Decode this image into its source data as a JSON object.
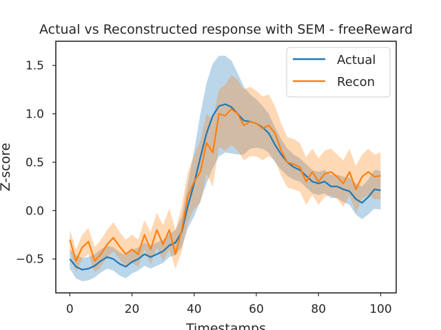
{
  "chart_data": {
    "type": "line",
    "title": "Actual vs Reconstructed response with SEM - freeReward",
    "xlabel": "Timestamps",
    "ylabel": "Z-score",
    "xlim": [
      -4.5,
      105
    ],
    "ylim": [
      -0.85,
      1.75
    ],
    "xticks": [
      0,
      20,
      40,
      60,
      80,
      100
    ],
    "yticks": [
      -0.5,
      0.0,
      0.5,
      1.0,
      1.5
    ],
    "ytick_labels": [
      "−0.5",
      "0.0",
      "0.5",
      "1.0",
      "1.5"
    ],
    "grid": false,
    "legend_position": "top-right",
    "x": [
      0,
      2,
      4,
      6,
      8,
      10,
      12,
      14,
      16,
      18,
      20,
      22,
      24,
      26,
      28,
      30,
      32,
      34,
      36,
      38,
      40,
      42,
      44,
      46,
      48,
      50,
      52,
      54,
      56,
      58,
      60,
      62,
      64,
      66,
      68,
      70,
      72,
      74,
      76,
      78,
      80,
      82,
      84,
      86,
      88,
      90,
      92,
      94,
      96,
      98,
      100
    ],
    "series": [
      {
        "name": "Actual",
        "color": "#1f77b4",
        "values": [
          -0.5,
          -0.58,
          -0.61,
          -0.6,
          -0.57,
          -0.52,
          -0.48,
          -0.5,
          -0.55,
          -0.58,
          -0.53,
          -0.5,
          -0.45,
          -0.48,
          -0.45,
          -0.42,
          -0.36,
          -0.33,
          -0.22,
          0.05,
          0.28,
          0.55,
          0.8,
          0.98,
          1.08,
          1.1,
          1.07,
          1.0,
          0.93,
          0.92,
          0.9,
          0.86,
          0.8,
          0.68,
          0.58,
          0.5,
          0.45,
          0.42,
          0.36,
          0.3,
          0.28,
          0.3,
          0.25,
          0.25,
          0.22,
          0.2,
          0.12,
          0.08,
          0.14,
          0.22,
          0.21
        ],
        "sem_upper": [
          -0.4,
          -0.46,
          -0.49,
          -0.48,
          -0.45,
          -0.4,
          -0.36,
          -0.38,
          -0.43,
          -0.46,
          -0.41,
          -0.38,
          -0.33,
          -0.36,
          -0.33,
          -0.3,
          -0.24,
          -0.2,
          -0.06,
          0.28,
          0.62,
          1.0,
          1.32,
          1.52,
          1.6,
          1.6,
          1.55,
          1.42,
          1.28,
          1.2,
          1.15,
          1.08,
          1.0,
          0.86,
          0.74,
          0.64,
          0.58,
          0.54,
          0.48,
          0.42,
          0.4,
          0.42,
          0.37,
          0.37,
          0.35,
          0.34,
          0.28,
          0.25,
          0.32,
          0.42,
          0.41
        ],
        "sem_lower": [
          -0.6,
          -0.7,
          -0.73,
          -0.72,
          -0.69,
          -0.64,
          -0.6,
          -0.62,
          -0.67,
          -0.7,
          -0.65,
          -0.62,
          -0.57,
          -0.6,
          -0.57,
          -0.54,
          -0.48,
          -0.46,
          -0.38,
          -0.18,
          -0.06,
          0.1,
          0.28,
          0.44,
          0.56,
          0.6,
          0.59,
          0.58,
          0.58,
          0.64,
          0.65,
          0.64,
          0.6,
          0.5,
          0.42,
          0.36,
          0.32,
          0.3,
          0.24,
          0.18,
          0.16,
          0.18,
          0.13,
          0.13,
          0.09,
          0.06,
          -0.04,
          -0.09,
          -0.04,
          0.02,
          0.01
        ]
      },
      {
        "name": "Recon",
        "color": "#ff7f0e",
        "values": [
          -0.3,
          -0.52,
          -0.38,
          -0.32,
          -0.52,
          -0.45,
          -0.35,
          -0.28,
          -0.37,
          -0.45,
          -0.4,
          -0.45,
          -0.25,
          -0.4,
          -0.2,
          -0.35,
          -0.2,
          -0.45,
          -0.2,
          0.15,
          0.3,
          0.4,
          0.7,
          0.6,
          1.0,
          0.98,
          1.05,
          1.0,
          0.88,
          0.92,
          0.9,
          0.85,
          0.88,
          0.8,
          0.62,
          0.5,
          0.48,
          0.45,
          0.3,
          0.4,
          0.3,
          0.38,
          0.4,
          0.35,
          0.28,
          0.4,
          0.22,
          0.35,
          0.4,
          0.35,
          0.36
        ],
        "sem_upper": [
          -0.2,
          -0.4,
          -0.25,
          -0.18,
          -0.38,
          -0.3,
          -0.2,
          -0.12,
          -0.22,
          -0.3,
          -0.25,
          -0.3,
          -0.1,
          -0.22,
          -0.02,
          -0.15,
          0.02,
          -0.2,
          0.05,
          0.4,
          0.58,
          0.72,
          1.0,
          0.95,
          1.25,
          1.3,
          1.4,
          1.35,
          1.25,
          1.28,
          1.24,
          1.18,
          1.2,
          1.08,
          0.9,
          0.76,
          0.74,
          0.7,
          0.55,
          0.64,
          0.54,
          0.62,
          0.64,
          0.58,
          0.52,
          0.64,
          0.46,
          0.58,
          0.64,
          0.58,
          0.6
        ],
        "sem_lower": [
          -0.4,
          -0.64,
          -0.5,
          -0.45,
          -0.64,
          -0.58,
          -0.48,
          -0.42,
          -0.5,
          -0.58,
          -0.54,
          -0.58,
          -0.4,
          -0.56,
          -0.38,
          -0.52,
          -0.4,
          -0.6,
          -0.42,
          -0.12,
          0.02,
          0.08,
          0.38,
          0.25,
          0.66,
          0.62,
          0.68,
          0.62,
          0.52,
          0.56,
          0.56,
          0.52,
          0.56,
          0.52,
          0.36,
          0.24,
          0.22,
          0.2,
          0.06,
          0.16,
          0.06,
          0.14,
          0.16,
          0.12,
          0.04,
          0.16,
          -0.02,
          0.12,
          0.16,
          0.12,
          0.12
        ]
      }
    ]
  }
}
